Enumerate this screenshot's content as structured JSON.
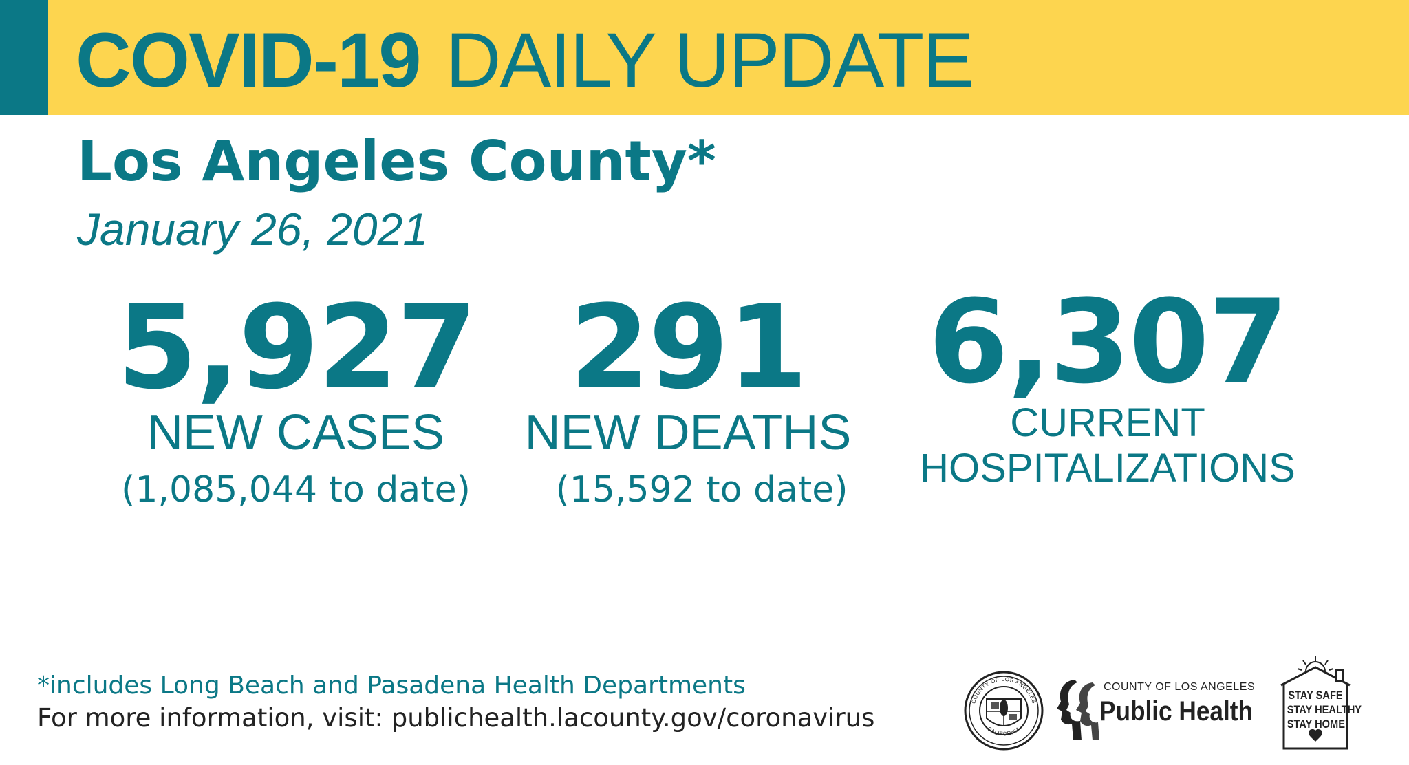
{
  "header": {
    "title_bold": "COVID-19",
    "title_regular": "DAILY UPDATE",
    "background_color": "#fdd54f",
    "accent_color": "#0b7886"
  },
  "region": {
    "name": "Los Angeles County*",
    "date": "January 26, 2021"
  },
  "stats": {
    "cases": {
      "value": "5,927",
      "label": "NEW CASES",
      "to_date": "(1,085,044 to date)"
    },
    "deaths": {
      "value": "291",
      "label": "NEW DEATHS",
      "to_date": "(15,592 to date)"
    },
    "hospitalizations": {
      "value": "6,307",
      "label_line1": "CURRENT",
      "label_line2": "HOSPITALIZATIONS"
    }
  },
  "footer": {
    "footnote": "*includes Long Beach and Pasadena Health Departments",
    "more_info_prefix": "For more information, visit: ",
    "more_info_link": "publichealth.lacounty.gov/coronavirus"
  },
  "logos": {
    "seal_icon": "county-seal-icon",
    "public_health_small": "COUNTY OF LOS ANGELES",
    "public_health_big": "Public Health",
    "seal_text_top": "COUNTY OF LOS ANGELES",
    "seal_text_bottom": "CALIFORNIA",
    "stay_line1": "STAY SAFE",
    "stay_line2": "STAY HEALTHY",
    "stay_line3": "STAY HOME"
  },
  "colors": {
    "primary_teal": "#0b7886",
    "banner_yellow": "#fdd54f",
    "footer_text": "#222222"
  }
}
